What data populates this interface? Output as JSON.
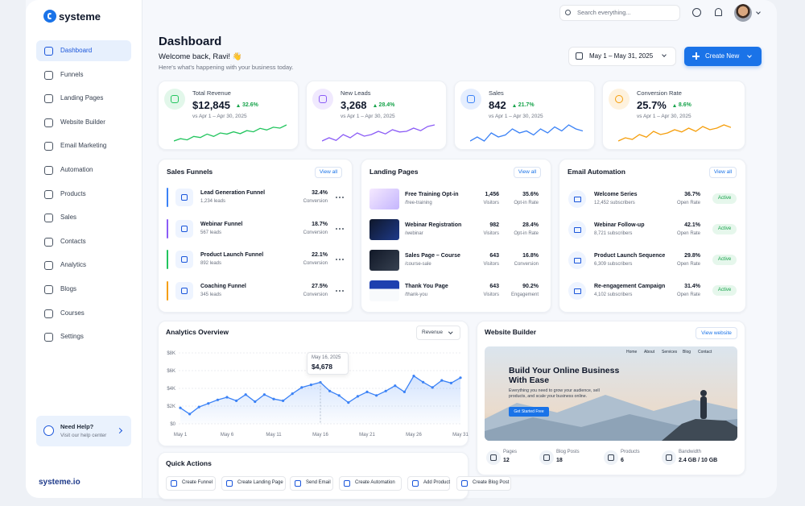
{
  "brand": "systeme",
  "nav": [
    "Dashboard",
    "Funnels",
    "Landing Pages",
    "Website Builder",
    "Email Marketing",
    "Automation",
    "Products",
    "Sales",
    "Contacts",
    "Analytics",
    "Blogs",
    "Courses",
    "Settings"
  ],
  "help": {
    "title": "Need Help?",
    "text": "Visit our help center"
  },
  "footer_brand": "systeme.io",
  "search_placeholder": "Search everything...",
  "header": {
    "title": "Dashboard",
    "welcome": "Welcome back, Ravi! 👋",
    "subtitle": "Here's what's happening with your business today."
  },
  "date_range": "May 1 – May 31, 2025",
  "create_button": "Create New",
  "kpis": [
    {
      "label": "Total Revenue",
      "value": "$12,845",
      "change": "32.6%",
      "compare": "vs Apr 1 – Apr 30, 2025",
      "color": "#22c55e",
      "sparkline": [
        3,
        4,
        3.5,
        5,
        4.5,
        6,
        5,
        6.5,
        6,
        7,
        6.2,
        7.5,
        7,
        8.5,
        7.8,
        9,
        8.6,
        10
      ]
    },
    {
      "label": "New Leads",
      "value": "3,268",
      "change": "28.4%",
      "compare": "vs Apr 1 – Apr 30, 2025",
      "color": "#8b5cf6",
      "sparkline": [
        4,
        5,
        4.2,
        6,
        5,
        6.5,
        5.5,
        6,
        7,
        6.2,
        7.5,
        6.8,
        7,
        8,
        7.2,
        8.5,
        9
      ]
    },
    {
      "label": "Sales",
      "value": "842",
      "change": "21.7%",
      "compare": "vs Apr 1 – Apr 30, 2025",
      "color": "#3b82f6",
      "sparkline": [
        5,
        6,
        5,
        7,
        6,
        6.5,
        8,
        7,
        7.5,
        6.5,
        8,
        7,
        8.5,
        7.5,
        9,
        8,
        7.5
      ]
    },
    {
      "label": "Conversion Rate",
      "value": "25.7%",
      "change": "8.6%",
      "compare": "vs Apr 1 – Apr 30, 2025",
      "color": "#f59e0b",
      "sparkline": [
        4,
        5,
        4.5,
        6,
        5.2,
        7,
        6,
        6.5,
        7.5,
        6.8,
        8,
        7,
        8.5,
        7.5,
        8,
        9,
        8.2
      ]
    }
  ],
  "sales_funnels": {
    "title": "Sales Funnels",
    "action": "View all",
    "items": [
      {
        "name": "Lead Generation Funnel",
        "leads": "1,234 leads",
        "rate": "32.4%",
        "rate_label": "Conversion",
        "color": "#3b82f6"
      },
      {
        "name": "Webinar Funnel",
        "leads": "567 leads",
        "rate": "18.7%",
        "rate_label": "Conversion",
        "color": "#8b5cf6"
      },
      {
        "name": "Product Launch Funnel",
        "leads": "892 leads",
        "rate": "22.1%",
        "rate_label": "Conversion",
        "color": "#22c55e"
      },
      {
        "name": "Coaching Funnel",
        "leads": "345 leads",
        "rate": "27.5%",
        "rate_label": "Conversion",
        "color": "#f59e0b"
      }
    ]
  },
  "landing_pages": {
    "title": "Landing Pages",
    "action": "View all",
    "items": [
      {
        "name": "Free Training Opt-in",
        "path": "/free-training",
        "visitors": "1,456",
        "visitors_label": "Visitors",
        "rate": "35.6%",
        "rate_label": "Opt-in Rate"
      },
      {
        "name": "Webinar Registration",
        "path": "/webinar",
        "visitors": "982",
        "visitors_label": "Visitors",
        "rate": "28.4%",
        "rate_label": "Opt-in Rate"
      },
      {
        "name": "Sales Page – Course",
        "path": "/course-sale",
        "visitors": "643",
        "visitors_label": "Visitors",
        "rate": "16.8%",
        "rate_label": "Conversion"
      },
      {
        "name": "Thank You Page",
        "path": "/thank-you",
        "visitors": "643",
        "visitors_label": "Visitors",
        "rate": "90.2%",
        "rate_label": "Engagement"
      }
    ]
  },
  "email_automation": {
    "title": "Email Automation",
    "action": "View all",
    "items": [
      {
        "name": "Welcome Series",
        "subscribers": "12,452 subscribers",
        "rate": "36.7%",
        "rate_label": "Open Rate",
        "status": "Active"
      },
      {
        "name": "Webinar Follow-up",
        "subscribers": "8,721 subscribers",
        "rate": "42.1%",
        "rate_label": "Open Rate",
        "status": "Active"
      },
      {
        "name": "Product Launch Sequence",
        "subscribers": "6,309 subscribers",
        "rate": "29.8%",
        "rate_label": "Open Rate",
        "status": "Active"
      },
      {
        "name": "Re-engagement Campaign",
        "subscribers": "4,102 subscribers",
        "rate": "31.4%",
        "rate_label": "Open Rate",
        "status": "Active"
      }
    ]
  },
  "chart_data": {
    "type": "line",
    "title": "Analytics Overview",
    "metric_selector": "Revenue",
    "color": "#3b82f6",
    "categories": [
      "May 1",
      null,
      null,
      null,
      null,
      "May 6",
      null,
      null,
      null,
      null,
      "May 11",
      null,
      null,
      null,
      null,
      "May 16",
      null,
      null,
      null,
      null,
      "May 21",
      null,
      null,
      null,
      null,
      "May 26",
      null,
      null,
      null,
      null,
      "May 31"
    ],
    "values": [
      1800,
      1100,
      1900,
      2300,
      2700,
      3000,
      2600,
      3300,
      2500,
      3300,
      2800,
      2600,
      3400,
      4100,
      4400,
      4678,
      3700,
      3200,
      2400,
      3100,
      3600,
      3200,
      3700,
      4300,
      3600,
      5400,
      4700,
      4100,
      4900,
      4600,
      5200
    ],
    "value_labels": [
      null,
      null,
      null,
      null,
      null,
      null,
      null,
      null,
      null,
      null,
      null,
      null,
      null,
      null,
      null,
      "$4,678",
      null,
      null,
      null,
      null,
      null,
      null,
      null,
      null,
      null,
      null,
      null,
      null,
      null,
      null,
      null
    ],
    "tooltip_title": "May 16, 2025",
    "ylim": [
      0,
      8000
    ],
    "yticks": [
      {
        "value": 0,
        "label": "$0"
      },
      {
        "value": 2000,
        "label": "$2K"
      },
      {
        "value": 4000,
        "label": "$4K"
      },
      {
        "value": 6000,
        "label": "$6K"
      },
      {
        "value": 8000,
        "label": "$8K"
      }
    ],
    "grid": true
  },
  "website_builder": {
    "title": "Website Builder",
    "action": "View website",
    "preview": {
      "nav": [
        "Home",
        "About",
        "Services",
        "Blog",
        "Contact"
      ],
      "headline": "Build Your Online Business With Ease",
      "text": "Everything you need to grow your audience, sell products, and scale your business online.",
      "button": "Get Started Free"
    },
    "stats": [
      {
        "label": "Pages",
        "value": "12"
      },
      {
        "label": "Blog Posts",
        "value": "18"
      },
      {
        "label": "Products",
        "value": "6"
      },
      {
        "label": "Bandwidth",
        "value": "2.4 GB / 10 GB"
      }
    ]
  },
  "quick_actions": {
    "title": "Quick Actions",
    "items": [
      "Create Funnel",
      "Create Landing Page",
      "Send Email",
      "Create Automation",
      "Add Product",
      "Create Blog Post"
    ]
  }
}
